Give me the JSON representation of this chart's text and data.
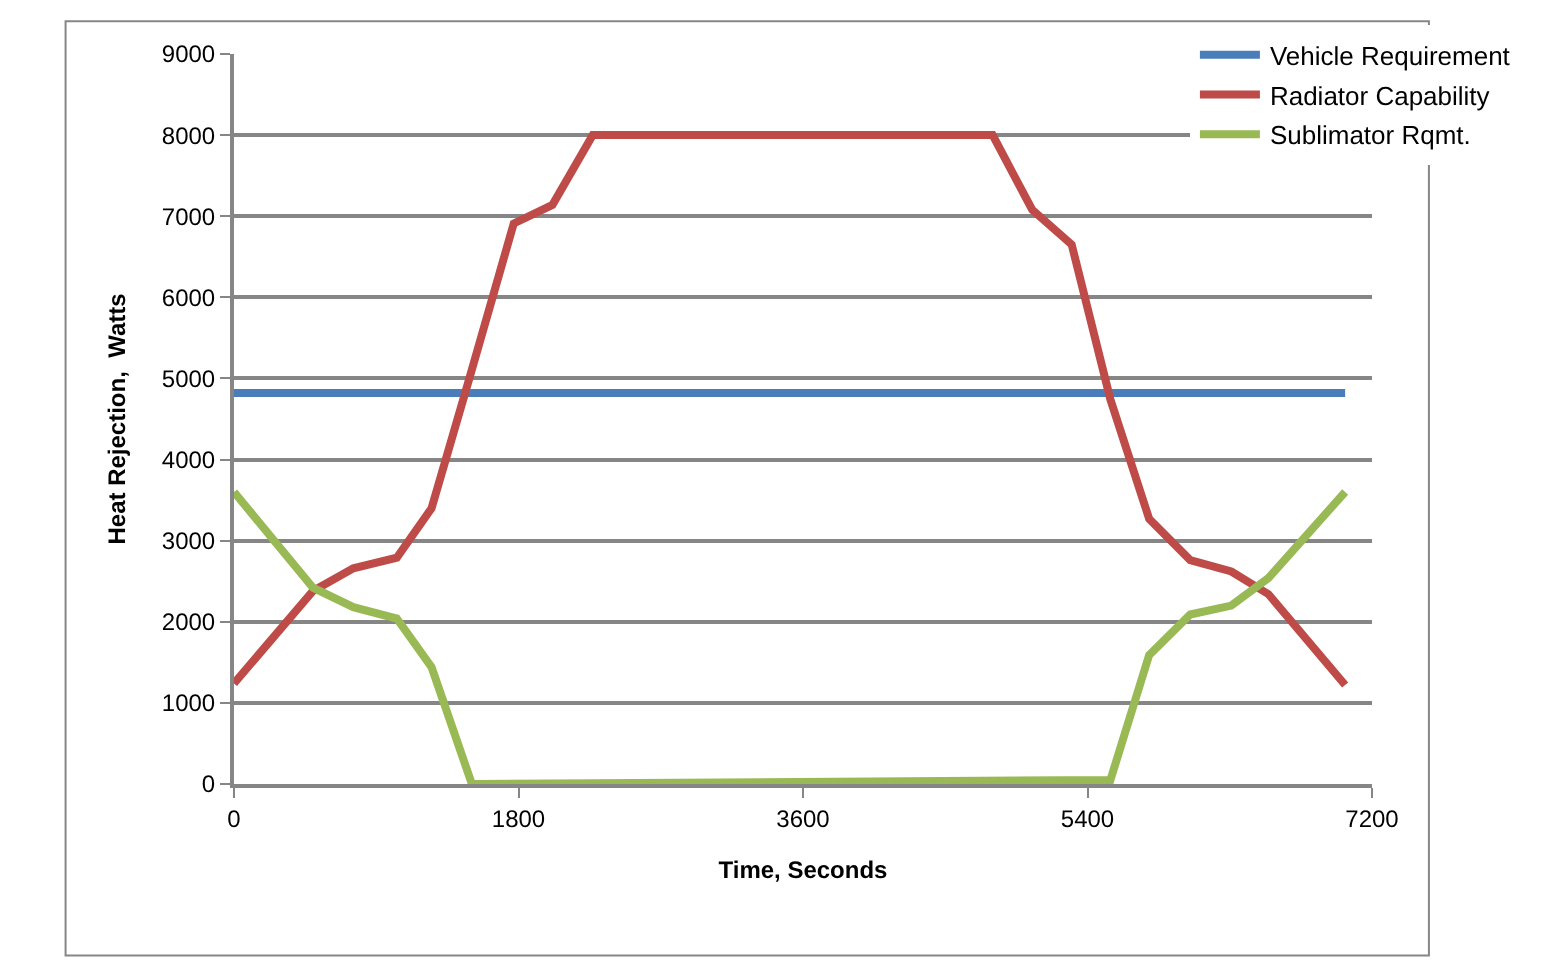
{
  "chart_data": {
    "type": "line",
    "xlabel": "Time, Seconds",
    "ylabel": "Heat Rejection,  Watts",
    "series": [
      {
        "name": "Vehicle Requirement",
        "color": "#4a7ebb",
        "x": [
          0,
          7030
        ],
        "values": [
          4820,
          4820
        ]
      },
      {
        "name": "Radiator Capability",
        "color": "#be4b48",
        "x": [
          0,
          500,
          755,
          1030,
          1250,
          1480,
          1770,
          2015,
          2270,
          4800,
          5050,
          5300,
          5545,
          5790,
          6050,
          6310,
          6545,
          7030
        ],
        "values": [
          1240,
          2380,
          2660,
          2790,
          3400,
          4940,
          6910,
          7140,
          8000,
          8000,
          7080,
          6650,
          4740,
          3270,
          2760,
          2620,
          2340,
          1220
        ]
      },
      {
        "name": "Sublimator Rqmt.",
        "color": "#98b954",
        "x": [
          0,
          500,
          755,
          1030,
          1250,
          1505,
          5545,
          5790,
          6050,
          6310,
          6545,
          7030
        ],
        "values": [
          3600,
          2420,
          2180,
          2040,
          1440,
          0,
          50,
          1590,
          2090,
          2200,
          2540,
          3600
        ]
      }
    ],
    "xlim": [
      0,
      7200
    ],
    "xticks": [
      0,
      1800,
      3600,
      5400,
      7200
    ],
    "ylim": [
      0,
      9000
    ],
    "yticks": [
      0,
      1000,
      2000,
      3000,
      4000,
      5000,
      6000,
      7000,
      8000,
      9000
    ],
    "grid": "y",
    "legend": "top right",
    "marker": "none",
    "line_style": "solid"
  }
}
